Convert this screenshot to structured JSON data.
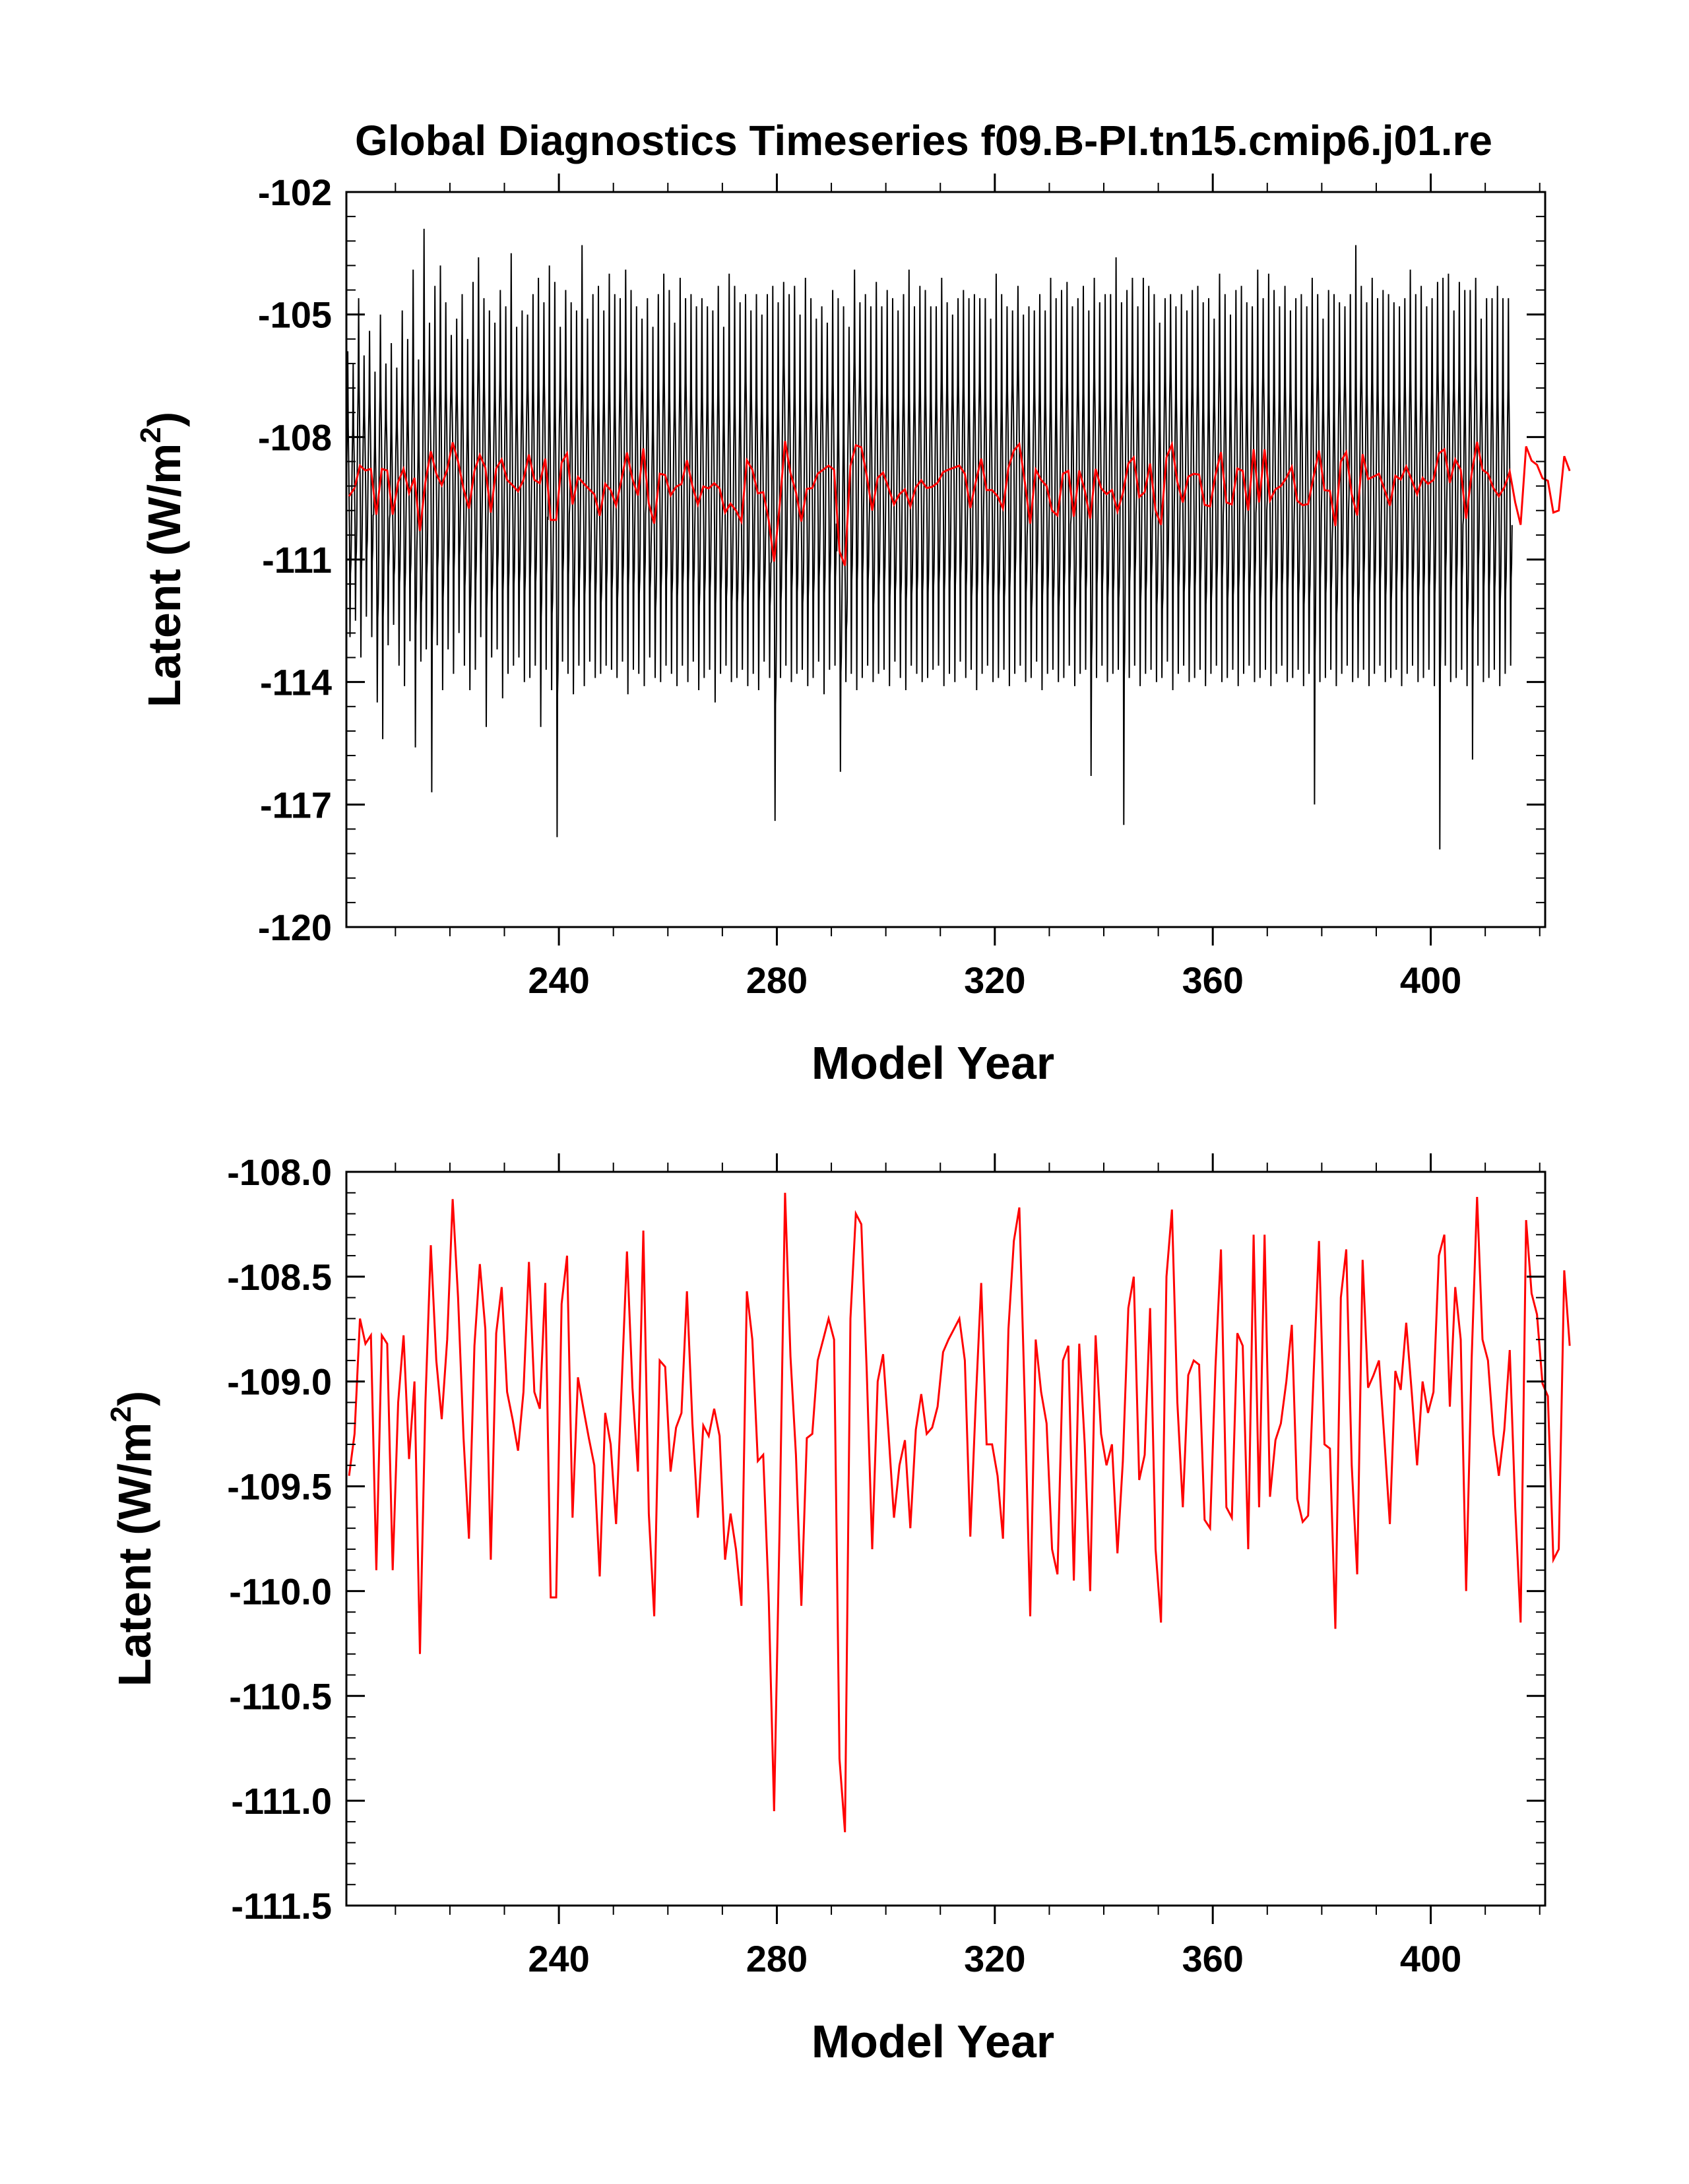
{
  "title": "Global Diagnostics Timeseries f09.B-PI.tn15.cmip6.j01.re",
  "colors": {
    "monthly": "#000000",
    "annual": "#ff0000",
    "background": "#ffffff"
  },
  "chart_data": [
    {
      "type": "line",
      "xlabel": "Model Year",
      "ylabel_main": "Latent (W/m",
      "ylabel_sup": "2",
      "ylabel_tail": ")",
      "xlim": [
        201,
        421
      ],
      "ylim": [
        -120,
        -102
      ],
      "xticks": [
        240,
        280,
        320,
        360,
        400
      ],
      "xtick_labels": [
        "240",
        "280",
        "320",
        "360",
        "400"
      ],
      "yticks": [
        -120,
        -117,
        -114,
        -111,
        -108,
        -105,
        -102
      ],
      "ytick_labels": [
        "-120",
        "-117",
        "-114",
        "-111",
        "-108",
        "-105",
        "-102"
      ],
      "series": [
        {
          "kind": "monthly",
          "color": "#000000",
          "envelope_max": [
            -105.9,
            -106.2,
            -104.6,
            -106.0,
            -105.4,
            -106.4,
            -105.0,
            -106.2,
            -105.7,
            -106.3,
            -104.9,
            -105.6,
            -103.9,
            -106.1,
            -102.9,
            -105.2,
            -104.3,
            -103.8,
            -104.7,
            -105.5,
            -105.1,
            -104.5,
            -105.6,
            -104.2,
            -103.6,
            -104.6,
            -104.9,
            -105.2,
            -104.4,
            -104.8,
            -103.5,
            -105.3,
            -104.9,
            -105.0,
            -104.5,
            -104.1,
            -104.7,
            -103.8,
            -104.2,
            -105.3,
            -104.4,
            -104.7,
            -104.9,
            -103.3,
            -105.1,
            -104.5,
            -104.3,
            -104.9,
            -104.0,
            -104.5,
            -104.6,
            -103.9,
            -104.4,
            -104.8,
            -105.1,
            -104.6,
            -105.3,
            -104.5,
            -104.0,
            -104.4,
            -105.2,
            -104.1,
            -104.6,
            -104.5,
            -104.8,
            -104.6,
            -104.8,
            -104.9,
            -104.3,
            -105.3,
            -104.0,
            -104.3,
            -104.7,
            -104.5,
            -104.9,
            -104.5,
            -105.0,
            -104.5,
            -104.3,
            -104.7,
            -104.2,
            -104.5,
            -104.3,
            -105.0,
            -104.1,
            -104.6,
            -105.1,
            -104.8,
            -105.2,
            -104.4,
            -104.6,
            -104.8,
            -105.3,
            -103.9,
            -104.7,
            -104.5,
            -104.8,
            -104.2,
            -104.8,
            -104.4,
            -104.6,
            -104.9,
            -104.5,
            -103.9,
            -104.8,
            -104.3,
            -104.4,
            -104.8,
            -104.8,
            -104.1,
            -104.7,
            -105.0,
            -104.6,
            -104.4,
            -104.6,
            -104.5,
            -104.6,
            -104.6,
            -105.1,
            -104.0,
            -104.5,
            -104.8,
            -104.9,
            -104.3,
            -105.0,
            -104.8,
            -104.9,
            -104.5,
            -104.9,
            -104.1,
            -104.6,
            -104.4,
            -104.2,
            -104.8,
            -104.6,
            -104.3,
            -104.9,
            -104.1,
            -104.7,
            -104.5,
            -104.5,
            -103.6,
            -104.7,
            -104.4,
            -104.1,
            -104.8,
            -104.1,
            -104.3,
            -104.5,
            -105.2,
            -104.6,
            -104.5,
            -104.8,
            -104.5,
            -104.9,
            -104.4,
            -104.3,
            -104.7,
            -104.6,
            -105.1,
            -104.0,
            -104.5,
            -105.0,
            -104.4,
            -104.3,
            -104.7,
            -104.8,
            -103.9,
            -104.6,
            -104.0,
            -104.4,
            -104.8,
            -104.3,
            -104.9,
            -104.6,
            -104.5,
            -104.8,
            -104.1,
            -104.5,
            -105.1,
            -104.4,
            -104.5,
            -104.7,
            -104.8,
            -104.5,
            -103.3,
            -104.3,
            -104.7,
            -104.1,
            -104.6,
            -104.4,
            -104.5,
            -104.7,
            -104.8,
            -104.6,
            -103.9,
            -104.5,
            -104.3,
            -104.8,
            -104.6,
            -104.2,
            -104.1,
            -104.0,
            -104.9,
            -104.2,
            -104.4,
            -104.4,
            -104.1,
            -105.1,
            -104.6,
            -104.6,
            -104.3,
            -104.6,
            -104.6
          ],
          "envelope_min": [
            -112.9,
            -112.5,
            -113.4,
            -112.4,
            -112.9,
            -114.5,
            -115.4,
            -113.1,
            -112.6,
            -113.6,
            -114.1,
            -113.0,
            -115.6,
            -113.5,
            -113.2,
            -116.7,
            -113.1,
            -114.2,
            -113.2,
            -113.8,
            -112.8,
            -113.6,
            -114.2,
            -113.7,
            -112.9,
            -115.1,
            -113.4,
            -113.2,
            -114.4,
            -113.8,
            -113.6,
            -113.4,
            -114.0,
            -113.9,
            -113.6,
            -115.1,
            -113.7,
            -114.2,
            -117.8,
            -113.5,
            -113.8,
            -114.3,
            -113.6,
            -114.1,
            -113.5,
            -113.9,
            -113.8,
            -113.6,
            -113.7,
            -113.9,
            -113.5,
            -114.3,
            -113.7,
            -113.8,
            -114.1,
            -113.4,
            -113.9,
            -114.0,
            -113.6,
            -113.8,
            -114.1,
            -113.6,
            -114.0,
            -113.5,
            -114.2,
            -113.9,
            -113.7,
            -114.5,
            -113.8,
            -113.6,
            -114.0,
            -113.9,
            -113.7,
            -114.1,
            -113.8,
            -114.2,
            -113.5,
            -113.9,
            -117.4,
            -113.9,
            -113.6,
            -114.0,
            -113.8,
            -113.7,
            -114.1,
            -113.9,
            -113.5,
            -114.3,
            -113.7,
            -113.6,
            -116.2,
            -114.0,
            -113.8,
            -114.2,
            -113.9,
            -113.6,
            -114.0,
            -113.8,
            -113.7,
            -114.1,
            -113.5,
            -113.9,
            -114.2,
            -113.6,
            -113.8,
            -114.0,
            -113.9,
            -113.7,
            -113.6,
            -114.1,
            -113.8,
            -114.0,
            -113.5,
            -113.9,
            -113.7,
            -114.2,
            -113.8,
            -113.6,
            -114.0,
            -113.9,
            -113.7,
            -114.1,
            -113.8,
            -113.6,
            -114.0,
            -113.9,
            -113.5,
            -114.2,
            -113.8,
            -113.7,
            -114.0,
            -113.9,
            -113.6,
            -114.1,
            -113.8,
            -113.7,
            -116.3,
            -113.9,
            -113.6,
            -114.0,
            -113.8,
            -113.7,
            -117.5,
            -113.9,
            -113.6,
            -114.1,
            -113.8,
            -113.7,
            -114.0,
            -113.9,
            -113.5,
            -114.2,
            -113.8,
            -113.6,
            -114.0,
            -113.9,
            -113.7,
            -114.1,
            -113.8,
            -113.6,
            -114.0,
            -113.9,
            -113.7,
            -114.1,
            -113.8,
            -113.6,
            -114.0,
            -113.9,
            -113.7,
            -114.1,
            -113.8,
            -113.6,
            -114.0,
            -113.9,
            -113.7,
            -114.1,
            -113.8,
            -117.0,
            -114.0,
            -113.9,
            -113.7,
            -114.1,
            -113.8,
            -113.6,
            -114.0,
            -113.9,
            -113.7,
            -114.1,
            -113.8,
            -113.6,
            -114.0,
            -113.9,
            -113.7,
            -114.1,
            -113.8,
            -113.6,
            -114.0,
            -113.9,
            -113.7,
            -114.1,
            -118.1,
            -113.6,
            -114.0,
            -113.9,
            -113.7,
            -114.1,
            -115.9,
            -113.6,
            -114.0,
            -113.9,
            -113.7,
            -114.1,
            -113.8,
            -113.6
          ]
        },
        {
          "kind": "annual",
          "color": "#ff0000",
          "values": [
            -109.45,
            -109.25,
            -108.7,
            -108.82,
            -108.78,
            -109.9,
            -108.78,
            -108.82,
            -109.9,
            -109.1,
            -108.78,
            -109.37,
            -109.0,
            -110.3,
            -109.1,
            -108.35,
            -108.9,
            -109.18,
            -108.8,
            -108.13,
            -108.6,
            -109.27,
            -109.75,
            -108.83,
            -108.44,
            -108.75,
            -109.85,
            -108.77,
            -108.55,
            -109.05,
            -109.18,
            -109.33,
            -109.05,
            -108.43,
            -109.05,
            -109.13,
            -108.53,
            -110.03,
            -110.03,
            -108.63,
            -108.4,
            -109.65,
            -108.98,
            -109.13,
            -109.27,
            -109.4,
            -109.93,
            -109.15,
            -109.3,
            -109.68,
            -109.03,
            -108.38,
            -109.03,
            -109.43,
            -108.28,
            -109.63,
            -110.12,
            -108.9,
            -108.93,
            -109.43,
            -109.22,
            -109.15,
            -108.57,
            -109.2,
            -109.65,
            -109.21,
            -109.26,
            -109.13,
            -109.26,
            -109.85,
            -109.63,
            -109.8,
            -110.07,
            -108.57,
            -108.8,
            -109.38,
            -109.35,
            -110.03,
            -111.05,
            -109.7,
            -108.1,
            -108.88,
            -109.35,
            -110.07,
            -109.27,
            -109.25,
            -108.9,
            -108.8,
            -108.7,
            -108.8,
            -110.8,
            -111.15,
            -108.7,
            -108.2,
            -108.25,
            -108.95,
            -109.8,
            -109.0,
            -108.87,
            -109.25,
            -109.65,
            -109.4,
            -109.28,
            -109.7,
            -109.23,
            -109.06,
            -109.25,
            -109.22,
            -109.12,
            -108.86,
            -108.8,
            -108.75,
            -108.7,
            -108.9,
            -109.74,
            -109.1,
            -108.53,
            -109.3,
            -109.3,
            -109.45,
            -109.75,
            -108.75,
            -108.33,
            -108.17,
            -109.1,
            -110.12,
            -108.8,
            -109.05,
            -109.2,
            -109.8,
            -109.92,
            -108.9,
            -108.83,
            -109.95,
            -108.82,
            -109.3,
            -110.0,
            -108.78,
            -109.25,
            -109.4,
            -109.3,
            -109.82,
            -109.38,
            -108.65,
            -108.5,
            -109.47,
            -109.35,
            -108.65,
            -109.8,
            -110.15,
            -108.5,
            -108.18,
            -109.1,
            -109.6,
            -108.97,
            -108.9,
            -108.92,
            -109.66,
            -109.7,
            -108.93,
            -108.37,
            -109.6,
            -109.65,
            -108.77,
            -108.83,
            -109.8,
            -108.3,
            -109.6,
            -108.3,
            -109.55,
            -109.28,
            -109.2,
            -109.0,
            -108.73,
            -109.56,
            -109.67,
            -109.64,
            -108.97,
            -108.33,
            -109.3,
            -109.32,
            -110.18,
            -108.6,
            -108.37,
            -109.4,
            -109.92,
            -108.42,
            -109.03,
            -108.97,
            -108.9,
            -109.28,
            -109.68,
            -108.95,
            -109.04,
            -108.72,
            -109.05,
            -109.4,
            -109.0,
            -109.15,
            -109.05,
            -108.4,
            -108.3,
            -109.12,
            -108.55,
            -108.8,
            -110.0,
            -108.9,
            -108.12,
            -108.8,
            -108.9,
            -109.25,
            -109.45,
            -109.23,
            -108.85,
            -109.6,
            -110.15,
            -108.23,
            -108.58,
            -108.68,
            -109.01,
            -109.07,
            -109.85,
            -109.8,
            -108.47,
            -108.83
          ]
        }
      ]
    },
    {
      "type": "line",
      "xlabel": "Model Year",
      "ylabel_main": "Latent (W/m",
      "ylabel_sup": "2",
      "ylabel_tail": ")",
      "xlim": [
        201,
        421
      ],
      "ylim": [
        -111.5,
        -108.0
      ],
      "xticks": [
        240,
        280,
        320,
        360,
        400
      ],
      "xtick_labels": [
        "240",
        "280",
        "320",
        "360",
        "400"
      ],
      "yticks": [
        -111.5,
        -111.0,
        -110.5,
        -110.0,
        -109.5,
        -109.0,
        -108.5,
        -108.0
      ],
      "ytick_labels": [
        "-111.5",
        "-111.0",
        "-110.5",
        "-110.0",
        "-109.5",
        "-109.0",
        "-108.5",
        "-108.0"
      ],
      "series": [
        {
          "kind": "annual",
          "color": "#ff0000",
          "values_ref": "same as top panel annual series"
        }
      ]
    }
  ]
}
